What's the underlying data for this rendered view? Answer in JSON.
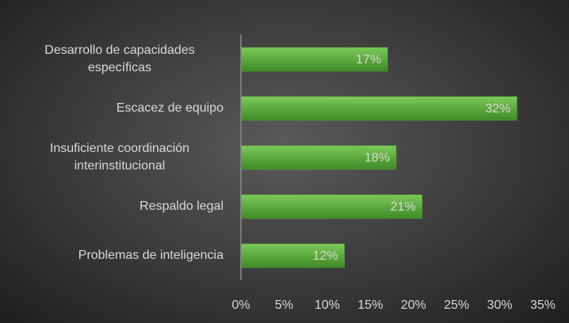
{
  "chart_data": {
    "type": "bar",
    "orientation": "horizontal",
    "categories": [
      "Desarrollo de capacidades específicas",
      "Escacez de equipo",
      "Insuficiente coordinación interinstitucional",
      "Respaldo legal",
      "Problemas de inteligencia"
    ],
    "values": [
      17,
      32,
      18,
      21,
      12
    ],
    "value_labels": [
      "17%",
      "32%",
      "18%",
      "21%",
      "12%"
    ],
    "color": "#5aa83a",
    "xlim": [
      0,
      35
    ],
    "xticks": [
      {
        "value": 0,
        "label": "0%"
      },
      {
        "value": 5,
        "label": "5%"
      },
      {
        "value": 10,
        "label": "10%"
      },
      {
        "value": 15,
        "label": "15%"
      },
      {
        "value": 20,
        "label": "20%"
      },
      {
        "value": 25,
        "label": "25%"
      },
      {
        "value": 30,
        "label": "30%"
      },
      {
        "value": 35,
        "label": "35%"
      }
    ],
    "grid": false
  }
}
